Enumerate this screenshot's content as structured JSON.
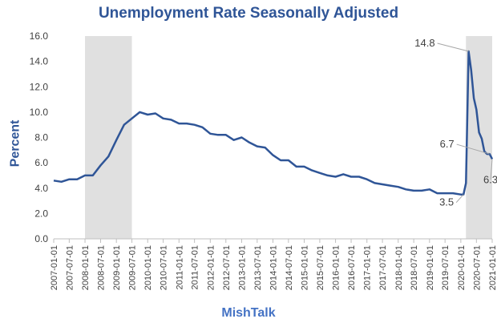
{
  "chart_data": {
    "type": "line",
    "title": "Unemployment Rate Seasonally Adjusted",
    "ylabel": "Percent",
    "xlabel": "MishTalk",
    "ylim": [
      0,
      16
    ],
    "yticks": [
      "0.0",
      "2.0",
      "4.0",
      "6.0",
      "8.0",
      "10.0",
      "12.0",
      "14.0",
      "16.0"
    ],
    "xticks": [
      "2007-01-01",
      "2007-07-01",
      "2008-01-01",
      "2008-07-01",
      "2009-01-01",
      "2009-07-01",
      "2010-01-01",
      "2010-07-01",
      "2011-01-01",
      "2011-07-01",
      "2012-01-01",
      "2012-07-01",
      "2013-01-01",
      "2013-07-01",
      "2014-01-01",
      "2014-07-01",
      "2015-01-01",
      "2015-07-01",
      "2016-01-01",
      "2016-07-01",
      "2017-01-01",
      "2017-07-01",
      "2018-01-01",
      "2018-07-01",
      "2019-01-01",
      "2019-07-01",
      "2020-01-01",
      "2020-07-01",
      "2021-01-01"
    ],
    "x_start": "2007-01-01",
    "x_end": "2021-01-01",
    "grid": false,
    "line_color": "#2F5597",
    "shade_color": "#e0e0e0",
    "recession_shading": [
      {
        "start": "2008-01-01",
        "end": "2009-07-01"
      },
      {
        "start": "2020-03-01",
        "end": "2021-01-01"
      }
    ],
    "series": [
      {
        "x": [
          "2007-01-01",
          "2007-04-01",
          "2007-07-01",
          "2007-10-01",
          "2008-01-01",
          "2008-04-01",
          "2008-07-01",
          "2008-10-01",
          "2009-01-01",
          "2009-04-01",
          "2009-07-01",
          "2009-10-01",
          "2010-01-01",
          "2010-04-01",
          "2010-07-01",
          "2010-10-01",
          "2011-01-01",
          "2011-04-01",
          "2011-07-01",
          "2011-10-01",
          "2012-01-01",
          "2012-04-01",
          "2012-07-01",
          "2012-10-01",
          "2013-01-01",
          "2013-04-01",
          "2013-07-01",
          "2013-10-01",
          "2014-01-01",
          "2014-04-01",
          "2014-07-01",
          "2014-10-01",
          "2015-01-01",
          "2015-04-01",
          "2015-07-01",
          "2015-10-01",
          "2016-01-01",
          "2016-04-01",
          "2016-07-01",
          "2016-10-01",
          "2017-01-01",
          "2017-04-01",
          "2017-07-01",
          "2017-10-01",
          "2018-01-01",
          "2018-04-01",
          "2018-07-01",
          "2018-10-01",
          "2019-01-01",
          "2019-04-01",
          "2019-07-01",
          "2019-10-01",
          "2020-01-01",
          "2020-02-01",
          "2020-03-01",
          "2020-04-01",
          "2020-05-01",
          "2020-06-01",
          "2020-07-01",
          "2020-08-01",
          "2020-09-01",
          "2020-10-01",
          "2020-11-01",
          "2020-12-01",
          "2021-01-01"
        ],
        "values": [
          4.6,
          4.5,
          4.7,
          4.7,
          5.0,
          5.0,
          5.8,
          6.5,
          7.8,
          9.0,
          9.5,
          10.0,
          9.8,
          9.9,
          9.5,
          9.4,
          9.1,
          9.1,
          9.0,
          8.8,
          8.3,
          8.2,
          8.2,
          7.8,
          8.0,
          7.6,
          7.3,
          7.2,
          6.6,
          6.2,
          6.2,
          5.7,
          5.7,
          5.4,
          5.2,
          5.0,
          4.9,
          5.1,
          4.9,
          4.9,
          4.7,
          4.4,
          4.3,
          4.2,
          4.1,
          3.9,
          3.8,
          3.8,
          3.9,
          3.6,
          3.6,
          3.6,
          3.5,
          3.5,
          4.4,
          14.8,
          13.3,
          11.1,
          10.2,
          8.4,
          7.9,
          6.9,
          6.7,
          6.7,
          6.3
        ]
      }
    ],
    "annotations": [
      {
        "x": "2020-04-01",
        "y": 14.8,
        "text": "14.8"
      },
      {
        "x": "2020-02-01",
        "y": 3.5,
        "text": "3.5"
      },
      {
        "x": "2020-12-01",
        "y": 6.7,
        "text": "6.7"
      },
      {
        "x": "2021-01-01",
        "y": 6.3,
        "text": "6.3"
      }
    ]
  }
}
